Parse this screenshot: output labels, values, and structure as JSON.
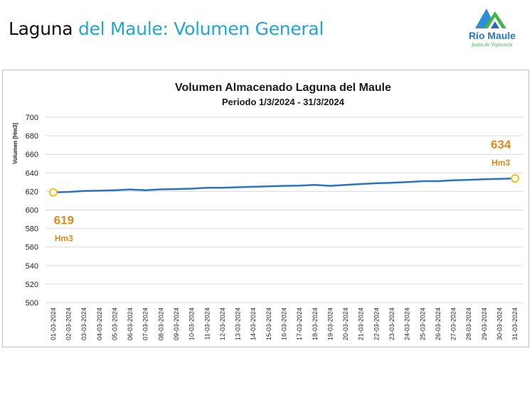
{
  "header": {
    "title_part1": "Laguna",
    "title_part2": " del Maule: Volumen General"
  },
  "logo": {
    "name": "Río Maule",
    "tagline": "Junta de Vigilancia"
  },
  "colors": {
    "title_accent": "#1fa7d6",
    "series_line": "#2a73c4",
    "annotation": "#e08a1e",
    "marker_fill": "#ffffff",
    "marker_stroke": "#e8c11c"
  },
  "chart_data": {
    "type": "line",
    "title": "Volumen Almacenado Laguna del Maule",
    "subtitle": "Periodo 1/3/2024 - 31/3/2024",
    "xlabel": "",
    "ylabel": "Volumen [Hm3]",
    "ylim": [
      500,
      700
    ],
    "yticks": [
      500,
      520,
      540,
      560,
      580,
      600,
      620,
      640,
      660,
      680,
      700
    ],
    "grid": true,
    "categories": [
      "01-03-2024",
      "02-03-2024",
      "03-03-2024",
      "04-03-2024",
      "05-03-2024",
      "06-03-2024",
      "07-03-2024",
      "08-03-2024",
      "09-03-2024",
      "10-03-2024",
      "11-03-2024",
      "12-03-2024",
      "13-03-2024",
      "14-03-2024",
      "15-03-2024",
      "16-03-2024",
      "17-03-2024",
      "18-03-2024",
      "19-03-2024",
      "20-03-2024",
      "21-03-2024",
      "22-03-2024",
      "23-03-2024",
      "24-03-2024",
      "25-03-2024",
      "26-03-2024",
      "27-03-2024",
      "28-03-2024",
      "29-03-2024",
      "30-03-2024",
      "31-03-2024"
    ],
    "series": [
      {
        "values": [
          619,
          619.5,
          620.5,
          620.8,
          621.2,
          622,
          621.3,
          622.2,
          622.5,
          623,
          624,
          624,
          624.5,
          625,
          625.5,
          626,
          626.3,
          627,
          626,
          627,
          628,
          628.8,
          629.3,
          630,
          631,
          631,
          632,
          632.5,
          633.2,
          633.5,
          634
        ]
      }
    ],
    "annotations": [
      {
        "label": "619",
        "unit": "Hm3"
      },
      {
        "label": "634",
        "unit": "Hm3"
      }
    ]
  }
}
